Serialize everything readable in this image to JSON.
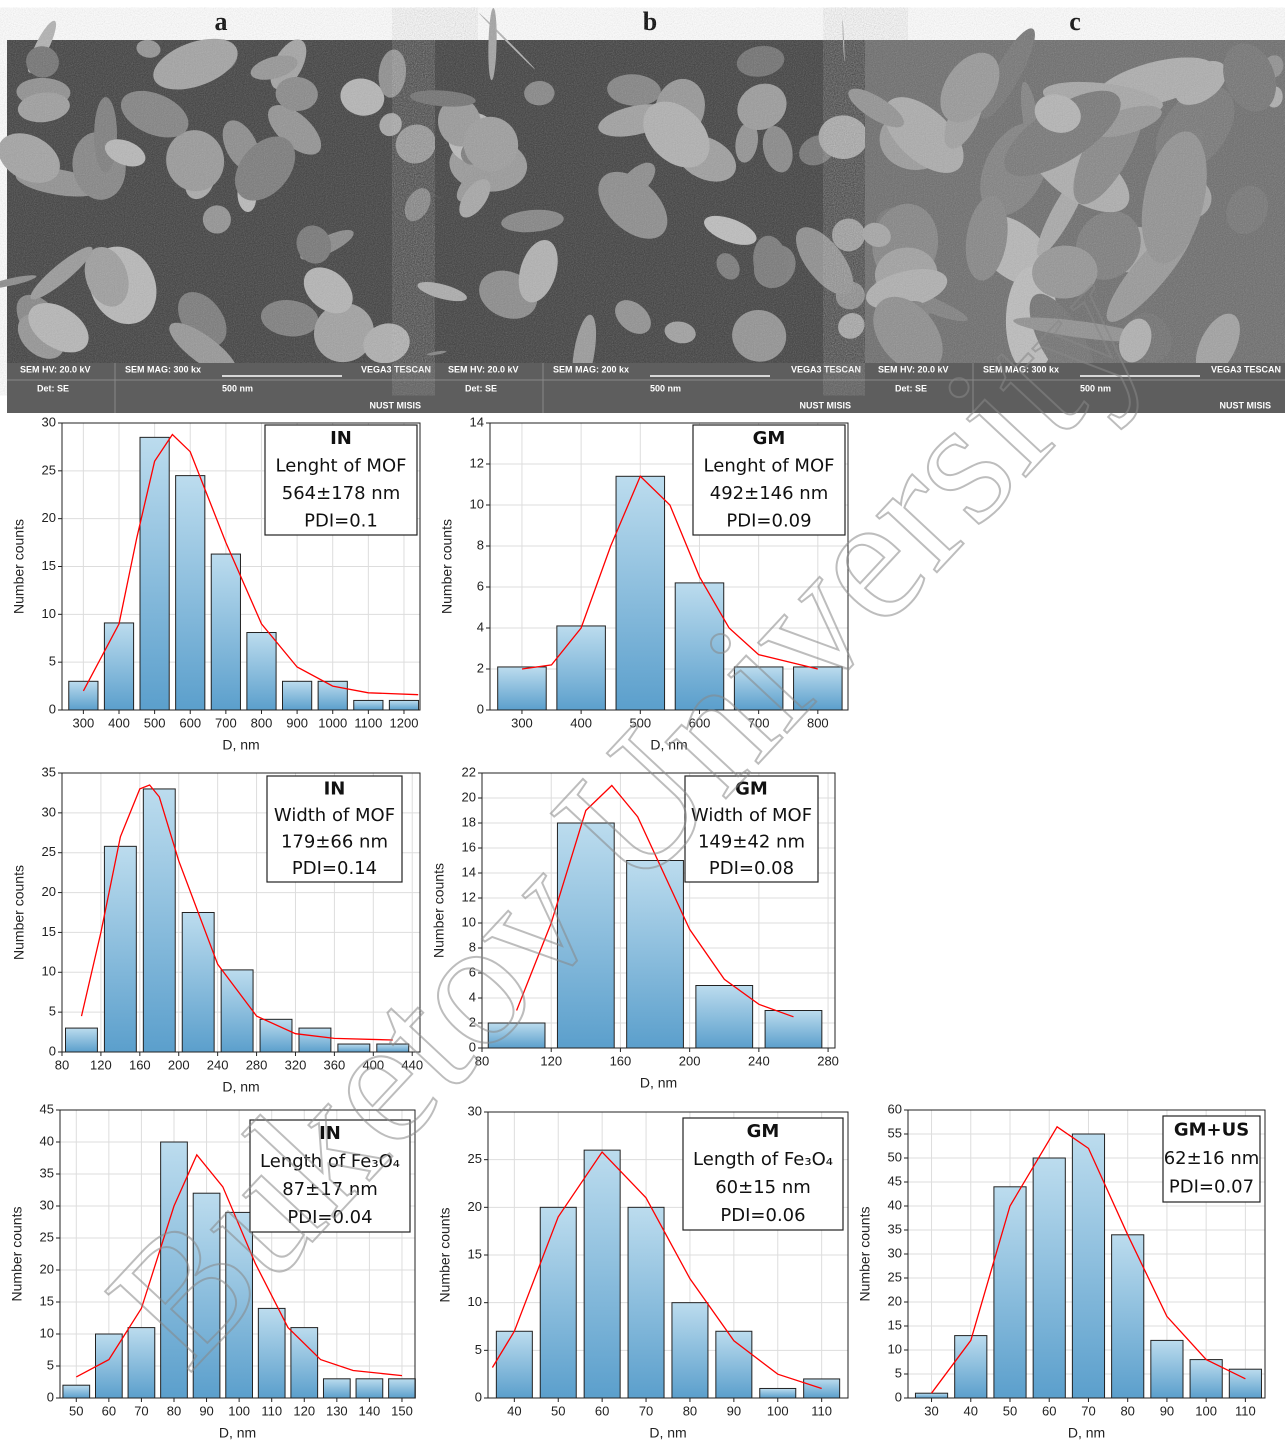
{
  "panels": [
    "a",
    "b",
    "c"
  ],
  "sem_images": [
    {
      "hv": "SEM HV: 20.0 kV",
      "mag": "SEM MAG: 300 kx",
      "det": "Det: SE",
      "scale": "500 nm",
      "brand": "VEGA3 TESCAN",
      "org": "NUST MISIS"
    },
    {
      "hv": "SEM HV: 20.0 kV",
      "mag": "SEM MAG: 200 kx",
      "det": "Det: SE",
      "scale": "500 nm",
      "brand": "VEGA3 TESCAN",
      "org": "NUST MISIS"
    },
    {
      "hv": "SEM HV: 20.0 kV",
      "mag": "SEM MAG: 300 kx",
      "det": "Det: SE",
      "scale": "500 nm",
      "brand": "VEGA3 TESCAN",
      "org": "NUST MISIS"
    }
  ],
  "watermark": "Buketov University",
  "chart_data": [
    {
      "type": "bar",
      "x": [
        300,
        400,
        500,
        600,
        700,
        800,
        900,
        1000,
        1100,
        1200
      ],
      "values": [
        3,
        9.1,
        28.5,
        24.5,
        16.3,
        8.1,
        3,
        3,
        1,
        1
      ],
      "color": "#6aaed6",
      "fit": {
        "color": "#ff0000",
        "x": [
          300,
          400,
          450,
          500,
          550,
          600,
          700,
          800,
          900,
          1000,
          1100,
          1240
        ],
        "values": [
          2,
          9,
          18,
          26,
          28.8,
          27,
          17.5,
          9,
          4.5,
          2.5,
          1.8,
          1.6
        ]
      },
      "xlim": [
        240,
        1245
      ],
      "xticks": [
        300,
        400,
        500,
        600,
        700,
        800,
        900,
        1000,
        1100,
        1200
      ],
      "ylim": [
        0,
        30
      ],
      "yticks": [
        0,
        5,
        10,
        15,
        20,
        25,
        30
      ],
      "xlabel": "D, nm",
      "ylabel": "Number counts",
      "annotation": [
        "IN",
        "Lenght of MOF",
        "564±178 nm",
        "PDI=0.1"
      ],
      "grid": true
    },
    {
      "type": "bar",
      "x": [
        300,
        400,
        500,
        600,
        700,
        800
      ],
      "values": [
        2.1,
        4.1,
        11.4,
        6.2,
        2.1,
        2.1
      ],
      "color": "#6aaed6",
      "fit": {
        "color": "#ff0000",
        "x": [
          300,
          350,
          400,
          450,
          500,
          550,
          600,
          650,
          700,
          800
        ],
        "values": [
          2,
          2.2,
          4,
          8,
          11.4,
          10,
          6.5,
          4,
          2.7,
          2
        ]
      },
      "xlim": [
        246,
        851
      ],
      "xticks": [
        300,
        400,
        500,
        600,
        700,
        800
      ],
      "ylim": [
        0,
        14
      ],
      "yticks": [
        0,
        2,
        4,
        6,
        8,
        10,
        12,
        14
      ],
      "xlabel": "D, nm",
      "ylabel": "Number counts",
      "annotation": [
        "GM",
        "Lenght of MOF",
        "492±146 nm",
        "PDI=0.09"
      ],
      "grid": true
    },
    {
      "type": "bar",
      "x": [
        100,
        140,
        180,
        220,
        260,
        300,
        340,
        380,
        420
      ],
      "values": [
        3,
        25.8,
        33,
        17.5,
        10.3,
        4.1,
        3,
        1,
        1
      ],
      "color": "#6aaed6",
      "fit": {
        "color": "#ff0000",
        "x": [
          100,
          120,
          140,
          160,
          170,
          180,
          200,
          240,
          280,
          320,
          360,
          420
        ],
        "values": [
          4.5,
          15,
          27,
          33,
          33.5,
          32,
          24,
          11,
          4.5,
          2.3,
          1.7,
          1.5
        ]
      },
      "xlim": [
        80,
        448
      ],
      "xticks": [
        80,
        120,
        160,
        200,
        240,
        280,
        320,
        360,
        400,
        440
      ],
      "ylim": [
        0,
        35
      ],
      "yticks": [
        0,
        5,
        10,
        15,
        20,
        25,
        30,
        35
      ],
      "xlabel": "D, nm",
      "ylabel": "Number counts",
      "annotation": [
        "IN",
        "Width of MOF",
        "179±66 nm",
        "PDI=0.14"
      ],
      "grid": true
    },
    {
      "type": "bar",
      "x": [
        100,
        140,
        180,
        220,
        260
      ],
      "values": [
        2,
        18,
        15,
        5,
        3
      ],
      "color": "#6aaed6",
      "fit": {
        "color": "#ff0000",
        "x": [
          100,
          120,
          140,
          155,
          170,
          200,
          220,
          240,
          260
        ],
        "values": [
          3,
          10,
          19,
          21,
          18.5,
          9.5,
          5.5,
          3.5,
          2.5
        ]
      },
      "xlim": [
        80,
        284
      ],
      "xticks": [
        80,
        120,
        160,
        200,
        240,
        280
      ],
      "ylim": [
        0,
        22
      ],
      "yticks": [
        0,
        2,
        4,
        6,
        8,
        10,
        12,
        14,
        16,
        18,
        20,
        22
      ],
      "xlabel": "D, nm",
      "ylabel": "Number counts",
      "annotation": [
        "GM",
        "Width of MOF",
        "149±42 nm",
        "PDI=0.08"
      ],
      "grid": true
    },
    {
      "type": "bar",
      "x": [
        50,
        60,
        70,
        80,
        90,
        100,
        110,
        120,
        130,
        140,
        150
      ],
      "values": [
        2,
        10,
        11,
        40,
        32,
        29,
        14,
        11,
        3,
        3,
        3
      ],
      "color": "#6aaed6",
      "fit": {
        "color": "#ff0000",
        "x": [
          50,
          60,
          70,
          80,
          87,
          95,
          105,
          115,
          125,
          135,
          150
        ],
        "values": [
          3.3,
          6,
          14,
          30,
          38,
          33,
          21,
          11,
          6,
          4.3,
          3.5
        ]
      },
      "xlim": [
        45,
        154
      ],
      "xticks": [
        50,
        60,
        70,
        80,
        90,
        100,
        110,
        120,
        130,
        140,
        150
      ],
      "ylim": [
        0,
        45
      ],
      "yticks": [
        0,
        5,
        10,
        15,
        20,
        25,
        30,
        35,
        40,
        45
      ],
      "xlabel": "D, nm",
      "ylabel": "Number counts",
      "annotation": [
        "IN",
        "Length of Fe₃O₄",
        "87±17 nm",
        "PDI=0.04"
      ],
      "grid": true
    },
    {
      "type": "bar",
      "x": [
        40,
        50,
        60,
        70,
        80,
        90,
        100,
        110
      ],
      "values": [
        7,
        20,
        26,
        20,
        10,
        7,
        1,
        2
      ],
      "color": "#6aaed6",
      "fit": {
        "color": "#ff0000",
        "x": [
          35,
          40,
          50,
          60,
          70,
          80,
          90,
          100,
          110
        ],
        "values": [
          3.2,
          7,
          19,
          25.8,
          21,
          12.5,
          6,
          2.5,
          1
        ]
      },
      "xlim": [
        34,
        116
      ],
      "xticks": [
        40,
        50,
        60,
        70,
        80,
        90,
        100,
        110
      ],
      "ylim": [
        0,
        30
      ],
      "yticks": [
        0,
        5,
        10,
        15,
        20,
        25,
        30
      ],
      "xlabel": "D, nm",
      "ylabel": "Number counts",
      "annotation": [
        "GM",
        "Length of Fe₃O₄",
        "60±15 nm",
        "PDI=0.06"
      ],
      "grid": true
    },
    {
      "type": "bar",
      "x": [
        30,
        40,
        50,
        60,
        70,
        80,
        90,
        100,
        110
      ],
      "values": [
        1,
        13,
        44,
        50,
        55,
        34,
        12,
        8,
        6
      ],
      "color": "#6aaed6",
      "fit": {
        "color": "#ff0000",
        "x": [
          30,
          40,
          50,
          62,
          70,
          80,
          90,
          100,
          110
        ],
        "values": [
          1,
          12,
          40,
          56.5,
          52,
          34,
          17,
          8,
          4
        ]
      },
      "xlim": [
        24,
        115
      ],
      "xticks": [
        30,
        40,
        50,
        60,
        70,
        80,
        90,
        100,
        110
      ],
      "ylim": [
        0,
        60
      ],
      "yticks": [
        0,
        5,
        10,
        15,
        20,
        25,
        30,
        35,
        40,
        45,
        50,
        55,
        60
      ],
      "xlabel": "D, nm",
      "ylabel": "Number counts",
      "annotation": [
        "GM+US",
        "62±16 nm",
        "PDI=0.07"
      ],
      "grid": true
    }
  ]
}
